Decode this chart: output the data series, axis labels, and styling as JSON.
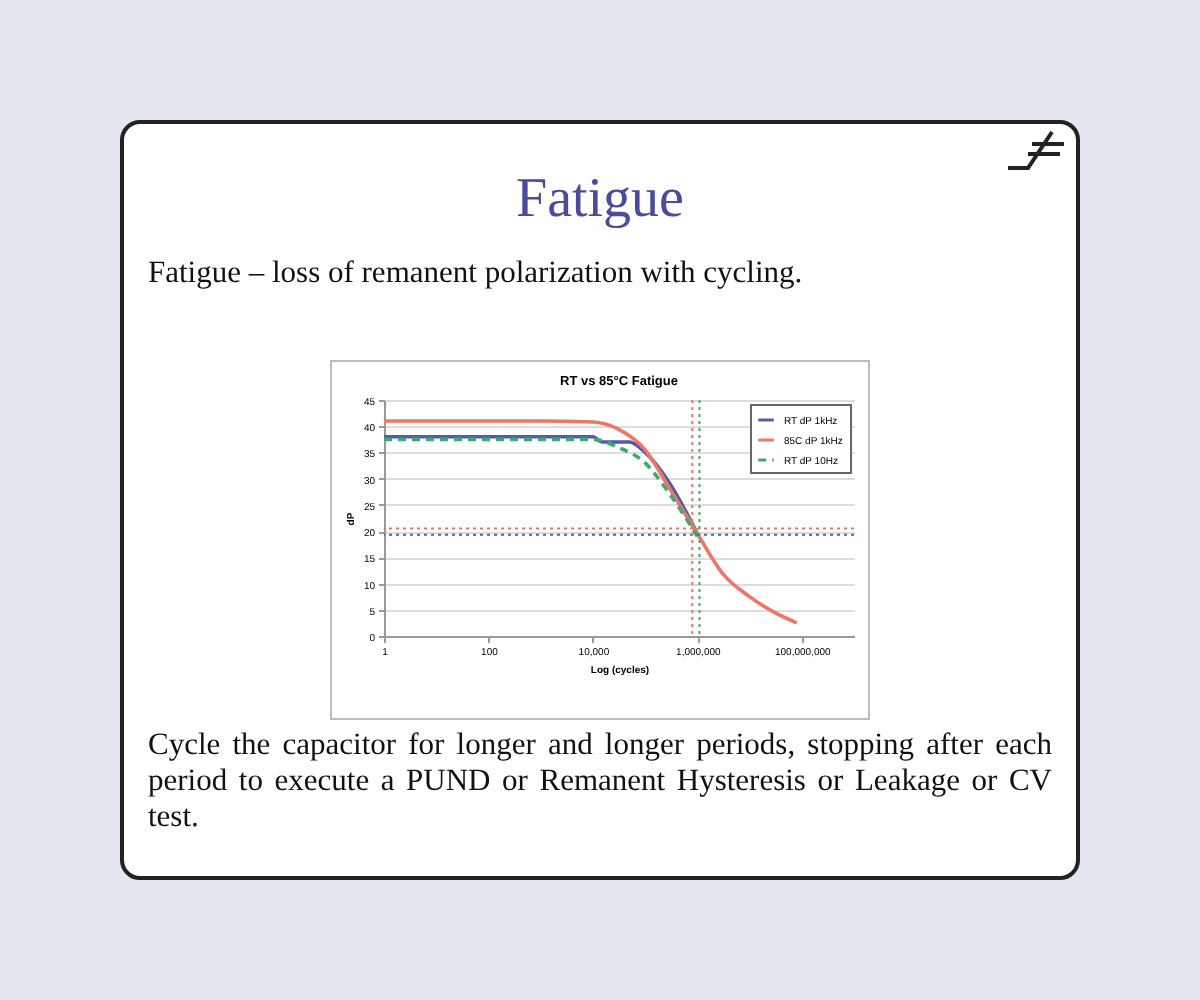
{
  "chart_data": {
    "type": "line",
    "title": "RT vs 85°C Fatigue",
    "annotations": [
      "Fatigue",
      "Fatigue – loss of remanent polarization with cycling.",
      "Cycle the capacitor for longer and longer periods, stopping after each period to execute a PUND or Remanent Hysteresis or Leakage or CV test."
    ],
    "xlabel": "Log (cycles)",
    "ylabel": "dP",
    "log": "x",
    "xlim": [
      1,
      1000000000
    ],
    "xticks": [
      1,
      100,
      {
        "value": 10000,
        "label": "10,000"
      },
      {
        "value": 1000000,
        "label": "1,000,000"
      },
      {
        "value": 100000000,
        "label": "100,000,000"
      }
    ],
    "ylim": [
      0,
      45
    ],
    "yticks": [
      0,
      5,
      10,
      15,
      20,
      25,
      30,
      35,
      40,
      45
    ],
    "grid": "y",
    "legend": "top right",
    "marker": "none",
    "series": [
      {
        "name": "RT  dP 1kHz",
        "color": "#4f5bab",
        "line_style": "solid",
        "x": [
          1,
          1000,
          10000,
          15000,
          50000,
          100000,
          300000,
          1000000
        ],
        "values": [
          38,
          38,
          38,
          37,
          37,
          35,
          29,
          19.5
        ]
      },
      {
        "name": "85C dP 1kHz",
        "color": "#f07565",
        "line_style": "solid",
        "x": [
          1,
          1000,
          10000,
          30000,
          100000,
          300000,
          1000000,
          3000000,
          10000000,
          30000000,
          80000000
        ],
        "values": [
          41,
          41,
          40.8,
          39.5,
          35.5,
          28,
          19.5,
          12,
          7.5,
          4.5,
          2.5
        ]
      },
      {
        "name": "RT  dP 10Hz",
        "color": "#3caa6e",
        "line_style": "dashed",
        "x": [
          1,
          1000,
          10000,
          30000,
          100000,
          300000,
          1000000
        ],
        "values": [
          37.5,
          37.5,
          37.5,
          36,
          33,
          27,
          19
        ]
      }
    ],
    "ref_lines": [
      {
        "axis": "y",
        "value": 20.5,
        "color": "#f07565",
        "line_style": "dotted"
      },
      {
        "axis": "y",
        "value": 19.3,
        "color": "#4f5bab",
        "line_style": "dotted"
      },
      {
        "axis": "x",
        "value": 800000,
        "color": "#f07565",
        "line_style": "dotted"
      },
      {
        "axis": "x",
        "value": 1100000,
        "color": "#3caa6e",
        "line_style": "dotted"
      }
    ]
  }
}
